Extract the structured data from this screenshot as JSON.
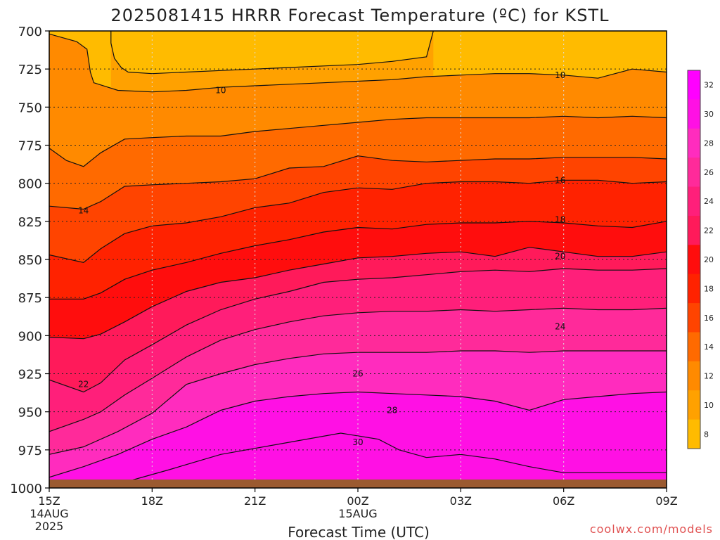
{
  "chart_data": {
    "type": "contour",
    "title": "2025081415 HRRR Forecast Temperature (ºC) for KSTL",
    "xlabel": "Forecast Time (UTC)",
    "ylabel": "",
    "credit": "coolwx.com/models",
    "y_axis": {
      "reversed": true,
      "range": [
        700,
        1000
      ],
      "ticks": [
        "700",
        "725",
        "750",
        "775",
        "800",
        "825",
        "850",
        "875",
        "900",
        "925",
        "950",
        "975",
        "1000"
      ]
    },
    "x_axis": {
      "range_hours": [
        0,
        18
      ],
      "ticks": [
        {
          "hour": 0,
          "lines": [
            "15Z",
            "14AUG",
            "2025"
          ]
        },
        {
          "hour": 3,
          "lines": [
            "18Z"
          ]
        },
        {
          "hour": 6,
          "lines": [
            "21Z"
          ]
        },
        {
          "hour": 9,
          "lines": [
            "00Z",
            "15AUG"
          ]
        },
        {
          "hour": 12,
          "lines": [
            "03Z"
          ]
        },
        {
          "hour": 15,
          "lines": [
            "06Z"
          ]
        },
        {
          "hour": 18,
          "lines": [
            "09Z"
          ]
        }
      ]
    },
    "grid": true,
    "colorbar": {
      "levels": [
        8,
        10,
        12,
        14,
        16,
        18,
        20,
        22,
        24,
        26,
        28,
        30,
        32
      ],
      "colors": [
        "#ffbb00",
        "#ffa100",
        "#ff8a00",
        "#ff6a00",
        "#ff4400",
        "#ff2200",
        "#ff0d0d",
        "#ff1a5a",
        "#ff1f7a",
        "#ff2a9a",
        "#ff2cbe",
        "#ff10e4",
        "#ff00ff"
      ],
      "tick_labels": [
        "8",
        "10",
        "12",
        "14",
        "16",
        "18",
        "20",
        "22",
        "24",
        "26",
        "28",
        "30",
        "32"
      ]
    },
    "surface_band_color": "#9b5a30",
    "contours": [
      {
        "level": 10,
        "points": [
          [
            1.8,
            700
          ],
          [
            1.8,
            708
          ],
          [
            1.9,
            718
          ],
          [
            2.1,
            724
          ],
          [
            2.3,
            727
          ],
          [
            3,
            728
          ],
          [
            4,
            727
          ],
          [
            5,
            726
          ],
          [
            6,
            725
          ],
          [
            7,
            724
          ],
          [
            8,
            723
          ],
          [
            9,
            722
          ],
          [
            10,
            720
          ],
          [
            11,
            717
          ],
          [
            11.2,
            700
          ]
        ]
      },
      {
        "level": 12,
        "points": [
          [
            0,
            702
          ],
          [
            0.8,
            707
          ],
          [
            1.1,
            712
          ],
          [
            1.2,
            727
          ],
          [
            1.3,
            734
          ],
          [
            2,
            739
          ],
          [
            3,
            740
          ],
          [
            4,
            739
          ],
          [
            5,
            737
          ],
          [
            6,
            736
          ],
          [
            7,
            735
          ],
          [
            8,
            734
          ],
          [
            9,
            733
          ],
          [
            10,
            732
          ],
          [
            11,
            730
          ],
          [
            12,
            729
          ],
          [
            13,
            728
          ],
          [
            14,
            728
          ],
          [
            15,
            729
          ],
          [
            16,
            731
          ],
          [
            17,
            725
          ],
          [
            18,
            727
          ]
        ]
      },
      {
        "level": 14,
        "points": [
          [
            0,
            777
          ],
          [
            0.5,
            785
          ],
          [
            1,
            789
          ],
          [
            1.5,
            780
          ],
          [
            2.2,
            771
          ],
          [
            3,
            770
          ],
          [
            4,
            769
          ],
          [
            5,
            769
          ],
          [
            6,
            766
          ],
          [
            7,
            764
          ],
          [
            8,
            762
          ],
          [
            9,
            760
          ],
          [
            10,
            758
          ],
          [
            11,
            757
          ],
          [
            12,
            757
          ],
          [
            13,
            757
          ],
          [
            14,
            757
          ],
          [
            15,
            756
          ],
          [
            16,
            757
          ],
          [
            17,
            756
          ],
          [
            18,
            757
          ]
        ]
      },
      {
        "level": 16,
        "points": [
          [
            0,
            815
          ],
          [
            1,
            817
          ],
          [
            1.5,
            812
          ],
          [
            2.2,
            802
          ],
          [
            3,
            801
          ],
          [
            4,
            800
          ],
          [
            5,
            799
          ],
          [
            6,
            797
          ],
          [
            7,
            790
          ],
          [
            8,
            789
          ],
          [
            9,
            782
          ],
          [
            10,
            785
          ],
          [
            11,
            786
          ],
          [
            12,
            785
          ],
          [
            13,
            784
          ],
          [
            14,
            784
          ],
          [
            15,
            783
          ],
          [
            16,
            783
          ],
          [
            17,
            783
          ],
          [
            18,
            784
          ]
        ]
      },
      {
        "level": 18,
        "points": [
          [
            0,
            847
          ],
          [
            1,
            852
          ],
          [
            1.5,
            843
          ],
          [
            2.2,
            833
          ],
          [
            3,
            828
          ],
          [
            4,
            826
          ],
          [
            5,
            822
          ],
          [
            6,
            816
          ],
          [
            7,
            813
          ],
          [
            8,
            806
          ],
          [
            9,
            803
          ],
          [
            10,
            804
          ],
          [
            11,
            800
          ],
          [
            12,
            799
          ],
          [
            13,
            799
          ],
          [
            14,
            800
          ],
          [
            15,
            798
          ],
          [
            16,
            798
          ],
          [
            17,
            800
          ],
          [
            18,
            799
          ]
        ]
      },
      {
        "level": 20,
        "points": [
          [
            0,
            876
          ],
          [
            1,
            876
          ],
          [
            1.5,
            872
          ],
          [
            2.2,
            863
          ],
          [
            3,
            857
          ],
          [
            4,
            852
          ],
          [
            5,
            846
          ],
          [
            6,
            841
          ],
          [
            7,
            837
          ],
          [
            8,
            832
          ],
          [
            9,
            829
          ],
          [
            10,
            830
          ],
          [
            11,
            827
          ],
          [
            12,
            826
          ],
          [
            13,
            826
          ],
          [
            14,
            825
          ],
          [
            15,
            826
          ],
          [
            16,
            828
          ],
          [
            17,
            829
          ],
          [
            18,
            825
          ]
        ]
      },
      {
        "level": 22,
        "points": [
          [
            0,
            901
          ],
          [
            1,
            902
          ],
          [
            1.5,
            899
          ],
          [
            2.2,
            891
          ],
          [
            3,
            881
          ],
          [
            4,
            871
          ],
          [
            5,
            865
          ],
          [
            6,
            862
          ],
          [
            7,
            857
          ],
          [
            8,
            853
          ],
          [
            9,
            849
          ],
          [
            10,
            848
          ],
          [
            11,
            846
          ],
          [
            12,
            845
          ],
          [
            13,
            848
          ],
          [
            14,
            842
          ],
          [
            15,
            845
          ],
          [
            16,
            848
          ],
          [
            17,
            848
          ],
          [
            18,
            845
          ]
        ]
      },
      {
        "level": 24,
        "points": [
          [
            0,
            929
          ],
          [
            1,
            937
          ],
          [
            1.5,
            931
          ],
          [
            2.2,
            916
          ],
          [
            3,
            906
          ],
          [
            4,
            893
          ],
          [
            5,
            883
          ],
          [
            6,
            876
          ],
          [
            7,
            871
          ],
          [
            8,
            865
          ],
          [
            9,
            863
          ],
          [
            10,
            862
          ],
          [
            11,
            860
          ],
          [
            12,
            858
          ],
          [
            13,
            857
          ],
          [
            14,
            858
          ],
          [
            15,
            856
          ],
          [
            16,
            857
          ],
          [
            17,
            857
          ],
          [
            18,
            856
          ]
        ]
      },
      {
        "level": 26,
        "points": [
          [
            0,
            963
          ],
          [
            1,
            955
          ],
          [
            1.5,
            950
          ],
          [
            2.2,
            939
          ],
          [
            3,
            928
          ],
          [
            4,
            914
          ],
          [
            5,
            903
          ],
          [
            6,
            896
          ],
          [
            7,
            891
          ],
          [
            8,
            887
          ],
          [
            9,
            885
          ],
          [
            10,
            884
          ],
          [
            11,
            884
          ],
          [
            12,
            883
          ],
          [
            13,
            884
          ],
          [
            14,
            883
          ],
          [
            15,
            882
          ],
          [
            16,
            883
          ],
          [
            17,
            883
          ],
          [
            18,
            882
          ]
        ]
      },
      {
        "level": 28,
        "points": [
          [
            0,
            978
          ],
          [
            1,
            973
          ],
          [
            2,
            963
          ],
          [
            3,
            951
          ],
          [
            4,
            932
          ],
          [
            5,
            925
          ],
          [
            6,
            919
          ],
          [
            7,
            915
          ],
          [
            8,
            912
          ],
          [
            9,
            911
          ],
          [
            10,
            911
          ],
          [
            11,
            911
          ],
          [
            12,
            910
          ],
          [
            13,
            910
          ],
          [
            14,
            911
          ],
          [
            15,
            910
          ],
          [
            16,
            910
          ],
          [
            17,
            910
          ],
          [
            18,
            910
          ]
        ]
      },
      {
        "level": 30,
        "points": [
          [
            0,
            993
          ],
          [
            1,
            986
          ],
          [
            2,
            978
          ],
          [
            3,
            968
          ],
          [
            4,
            960
          ],
          [
            5,
            949
          ],
          [
            6,
            943
          ],
          [
            7,
            940
          ],
          [
            8,
            938
          ],
          [
            9,
            937
          ],
          [
            10,
            938
          ],
          [
            11,
            939
          ],
          [
            12,
            940
          ],
          [
            13,
            943
          ],
          [
            14,
            949
          ],
          [
            15,
            942
          ],
          [
            16,
            940
          ],
          [
            17,
            938
          ],
          [
            18,
            937
          ]
        ]
      },
      {
        "level": 32,
        "points": [
          [
            1.6,
            1000
          ],
          [
            3.5,
            988
          ],
          [
            5,
            978
          ],
          [
            7,
            970
          ],
          [
            8.5,
            964
          ],
          [
            9.6,
            968
          ],
          [
            10.2,
            975
          ],
          [
            11,
            980
          ],
          [
            12,
            978
          ],
          [
            13,
            981
          ],
          [
            14,
            986
          ],
          [
            15,
            990
          ],
          [
            16,
            990
          ],
          [
            17,
            990
          ],
          [
            18,
            990
          ]
        ]
      },
      {
        "level": 34,
        "points": [
          [
            4,
            1000
          ],
          [
            6,
            996
          ],
          [
            7.5,
            992
          ],
          [
            9,
            990
          ],
          [
            10,
            996
          ],
          [
            10.6,
            1000
          ]
        ]
      },
      {
        "level": 34,
        "points": [
          [
            12,
            1000
          ],
          [
            12.5,
            993
          ],
          [
            13.5,
            991
          ],
          [
            14.6,
            986
          ],
          [
            14.8,
            990
          ],
          [
            15.5,
            1000
          ]
        ]
      },
      {
        "level": 34,
        "points": [
          [
            15.5,
            1000
          ],
          [
            16,
            992
          ],
          [
            16.6,
            985
          ],
          [
            17.2,
            984
          ],
          [
            18,
            985
          ]
        ]
      },
      {
        "level": 34,
        "points": [
          [
            0,
            1000
          ],
          [
            18,
            1000
          ]
        ]
      }
    ],
    "contour_labels": [
      {
        "text": "10",
        "hour": 5.0,
        "pressure": 739
      },
      {
        "text": "10",
        "hour": 14.9,
        "pressure": 729
      },
      {
        "text": "14",
        "hour": 1.0,
        "pressure": 818
      },
      {
        "text": "16",
        "hour": 14.9,
        "pressure": 798
      },
      {
        "text": "18",
        "hour": 14.9,
        "pressure": 824
      },
      {
        "text": "20",
        "hour": 14.9,
        "pressure": 848
      },
      {
        "text": "22",
        "hour": 1.0,
        "pressure": 932
      },
      {
        "text": "24",
        "hour": 14.9,
        "pressure": 894
      },
      {
        "text": "26",
        "hour": 9.0,
        "pressure": 925
      },
      {
        "text": "28",
        "hour": 10.0,
        "pressure": 949
      },
      {
        "text": "30",
        "hour": 9.0,
        "pressure": 970
      }
    ]
  }
}
